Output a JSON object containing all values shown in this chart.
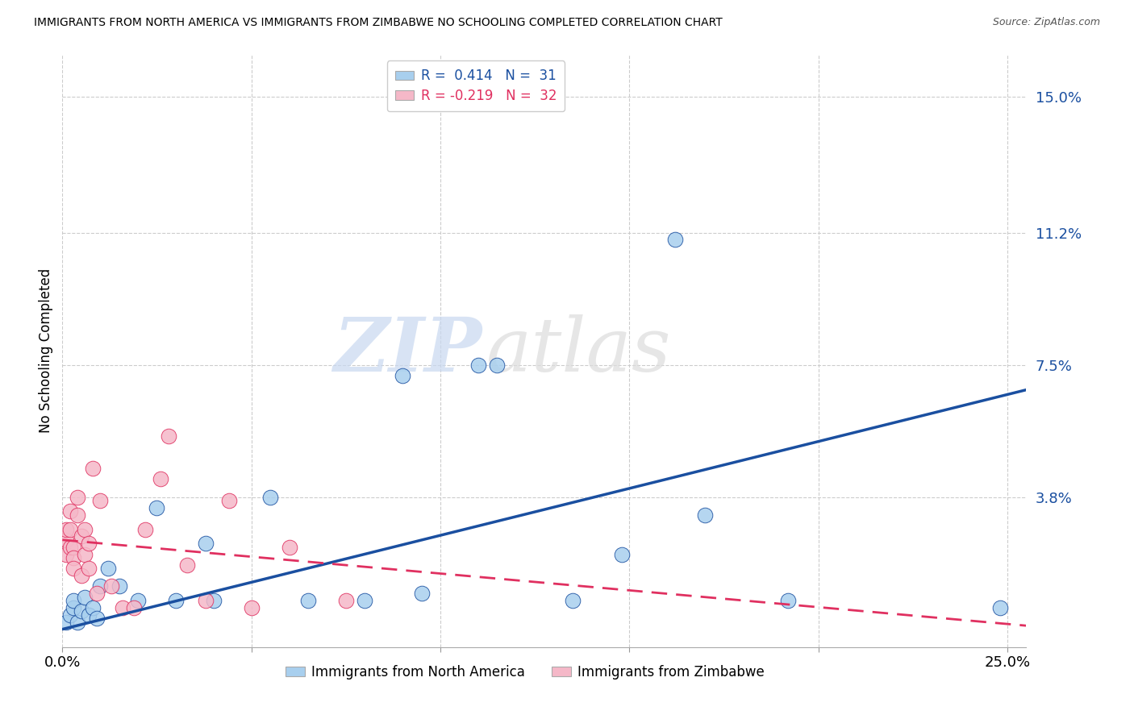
{
  "title": "IMMIGRANTS FROM NORTH AMERICA VS IMMIGRANTS FROM ZIMBABWE NO SCHOOLING COMPLETED CORRELATION CHART",
  "source": "Source: ZipAtlas.com",
  "ylabel": "No Schooling Completed",
  "xlim": [
    0.0,
    0.255
  ],
  "ylim": [
    -0.004,
    0.162
  ],
  "yticks": [
    0.038,
    0.075,
    0.112,
    0.15
  ],
  "ytick_labels": [
    "3.8%",
    "7.5%",
    "11.2%",
    "15.0%"
  ],
  "xticks": [
    0.0,
    0.05,
    0.1,
    0.15,
    0.2,
    0.25
  ],
  "xtick_labels": [
    "0.0%",
    "",
    "",
    "",
    "",
    "25.0%"
  ],
  "blue_label": "Immigrants from North America",
  "pink_label": "Immigrants from Zimbabwe",
  "blue_R": 0.414,
  "blue_N": 31,
  "pink_R": -0.219,
  "pink_N": 32,
  "blue_color": "#A8CFEE",
  "pink_color": "#F5B8C8",
  "blue_line_color": "#1A4FA0",
  "pink_line_color": "#E03060",
  "watermark_zip": "ZIP",
  "watermark_atlas": "atlas",
  "blue_line_start_y": 0.001,
  "blue_line_end_y": 0.068,
  "pink_line_start_y": 0.026,
  "pink_line_end_y": 0.002,
  "blue_points_x": [
    0.001,
    0.002,
    0.003,
    0.003,
    0.004,
    0.005,
    0.006,
    0.007,
    0.008,
    0.009,
    0.01,
    0.012,
    0.015,
    0.02,
    0.025,
    0.03,
    0.038,
    0.04,
    0.055,
    0.065,
    0.08,
    0.09,
    0.095,
    0.11,
    0.115,
    0.135,
    0.148,
    0.162,
    0.17,
    0.192,
    0.248
  ],
  "blue_points_y": [
    0.003,
    0.005,
    0.007,
    0.009,
    0.003,
    0.006,
    0.01,
    0.005,
    0.007,
    0.004,
    0.013,
    0.018,
    0.013,
    0.009,
    0.035,
    0.009,
    0.025,
    0.009,
    0.038,
    0.009,
    0.009,
    0.072,
    0.011,
    0.075,
    0.075,
    0.009,
    0.022,
    0.11,
    0.033,
    0.009,
    0.007
  ],
  "pink_points_x": [
    0.001,
    0.001,
    0.001,
    0.002,
    0.002,
    0.002,
    0.003,
    0.003,
    0.003,
    0.004,
    0.004,
    0.005,
    0.005,
    0.006,
    0.006,
    0.007,
    0.007,
    0.008,
    0.009,
    0.01,
    0.013,
    0.016,
    0.019,
    0.022,
    0.026,
    0.028,
    0.033,
    0.038,
    0.044,
    0.05,
    0.06,
    0.075
  ],
  "pink_points_y": [
    0.026,
    0.029,
    0.022,
    0.029,
    0.024,
    0.034,
    0.024,
    0.021,
    0.018,
    0.033,
    0.038,
    0.016,
    0.027,
    0.022,
    0.029,
    0.025,
    0.018,
    0.046,
    0.011,
    0.037,
    0.013,
    0.007,
    0.007,
    0.029,
    0.043,
    0.055,
    0.019,
    0.009,
    0.037,
    0.007,
    0.024,
    0.009
  ]
}
